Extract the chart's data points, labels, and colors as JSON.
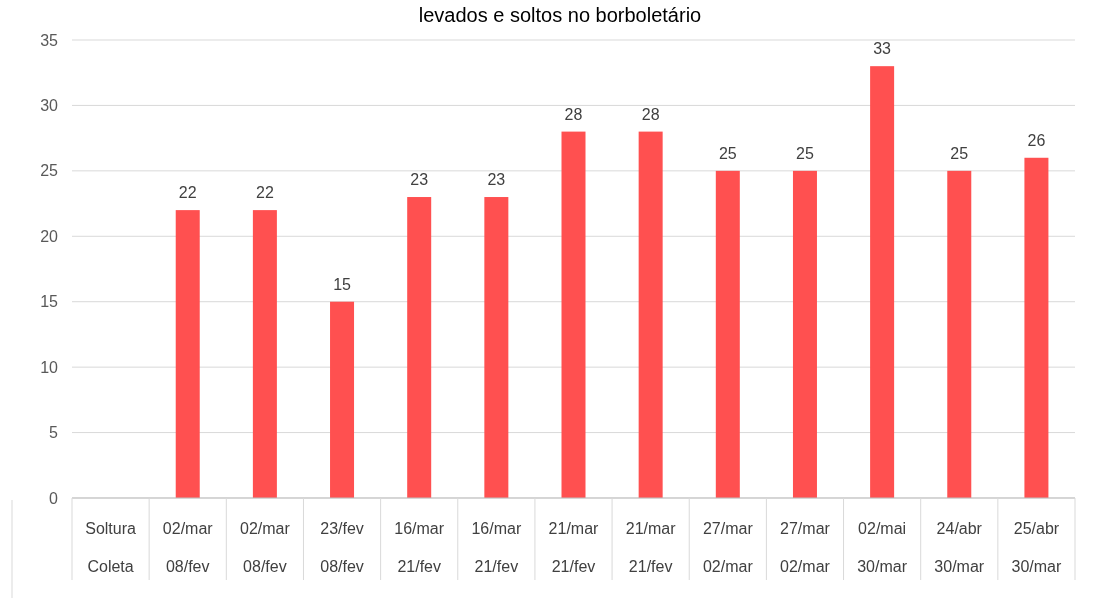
{
  "chart_data": {
    "type": "bar",
    "title": "levados e soltos no borboletário",
    "categories": [
      "Soltura\nColeta",
      "02/mar\n08/fev",
      "02/mar\n08/fev",
      "23/fev\n08/fev",
      "16/mar\n21/fev",
      "16/mar\n21/fev",
      "21/mar\n21/fev",
      "21/mar\n21/fev",
      "27/mar\n02/mar",
      "27/mar\n02/mar",
      "02/mai\n30/mar",
      "24/abr\n30/mar",
      "25/abr\n30/mar"
    ],
    "values": [
      null,
      22,
      22,
      15,
      23,
      23,
      28,
      28,
      25,
      25,
      33,
      25,
      26
    ],
    "color": "#ff5050",
    "ylim": [
      0,
      35
    ],
    "yticks": [
      0,
      5,
      10,
      15,
      20,
      25,
      30,
      35
    ],
    "grid": "y",
    "data_labels": true
  }
}
